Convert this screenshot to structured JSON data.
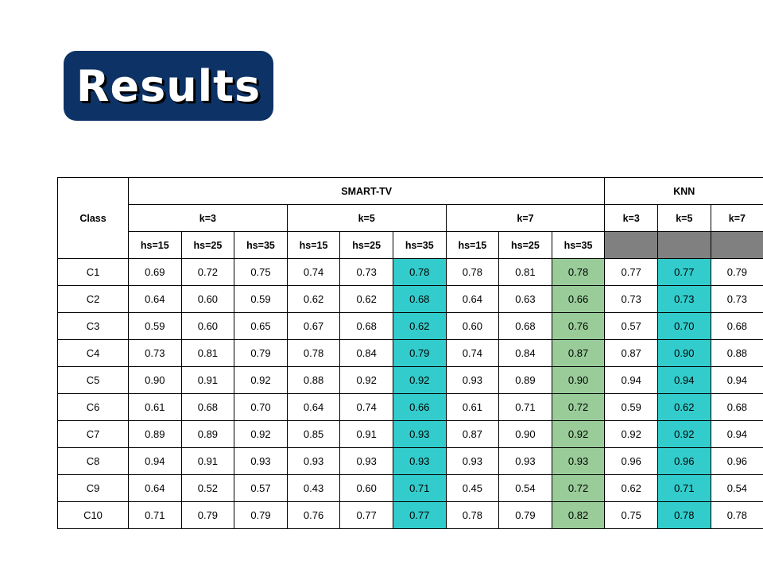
{
  "title": "Results",
  "colors": {
    "badge_bg": "#0d3366",
    "highlight_cyan": "#33cccc",
    "highlight_green": "#99cc99",
    "empty_gray": "#808080"
  },
  "table": {
    "class_header": "Class",
    "groups": [
      "SMART-TV",
      "KNN"
    ],
    "smart_k": [
      "k=3",
      "k=5",
      "k=7"
    ],
    "knn_k": [
      "k=3",
      "k=5",
      "k=7"
    ],
    "hs": [
      "hs=15",
      "hs=25",
      "hs=35",
      "hs=15",
      "hs=25",
      "hs=35",
      "hs=15",
      "hs=25",
      "hs=35"
    ],
    "rows": [
      {
        "cls": "C1",
        "v": [
          "0.69",
          "0.72",
          "0.75",
          "0.74",
          "0.73",
          "0.78",
          "0.78",
          "0.81",
          "0.78",
          "0.77",
          "0.77",
          "0.79"
        ]
      },
      {
        "cls": "C2",
        "v": [
          "0.64",
          "0.60",
          "0.59",
          "0.62",
          "0.62",
          "0.68",
          "0.64",
          "0.63",
          "0.66",
          "0.73",
          "0.73",
          "0.73"
        ]
      },
      {
        "cls": "C3",
        "v": [
          "0.59",
          "0.60",
          "0.65",
          "0.67",
          "0.68",
          "0.62",
          "0.60",
          "0.68",
          "0.76",
          "0.57",
          "0.70",
          "0.68"
        ]
      },
      {
        "cls": "C4",
        "v": [
          "0.73",
          "0.81",
          "0.79",
          "0.78",
          "0.84",
          "0.79",
          "0.74",
          "0.84",
          "0.87",
          "0.87",
          "0.90",
          "0.88"
        ]
      },
      {
        "cls": "C5",
        "v": [
          "0.90",
          "0.91",
          "0.92",
          "0.88",
          "0.92",
          "0.92",
          "0.93",
          "0.89",
          "0.90",
          "0.94",
          "0.94",
          "0.94"
        ]
      },
      {
        "cls": "C6",
        "v": [
          "0.61",
          "0.68",
          "0.70",
          "0.64",
          "0.74",
          "0.66",
          "0.61",
          "0.71",
          "0.72",
          "0.59",
          "0.62",
          "0.68"
        ]
      },
      {
        "cls": "C7",
        "v": [
          "0.89",
          "0.89",
          "0.92",
          "0.85",
          "0.91",
          "0.93",
          "0.87",
          "0.90",
          "0.92",
          "0.92",
          "0.92",
          "0.94"
        ]
      },
      {
        "cls": "C8",
        "v": [
          "0.94",
          "0.91",
          "0.93",
          "0.93",
          "0.93",
          "0.93",
          "0.93",
          "0.93",
          "0.93",
          "0.96",
          "0.96",
          "0.96"
        ]
      },
      {
        "cls": "C9",
        "v": [
          "0.64",
          "0.52",
          "0.57",
          "0.43",
          "0.60",
          "0.71",
          "0.45",
          "0.54",
          "0.72",
          "0.62",
          "0.71",
          "0.54"
        ]
      },
      {
        "cls": "C10",
        "v": [
          "0.71",
          "0.79",
          "0.79",
          "0.76",
          "0.77",
          "0.77",
          "0.78",
          "0.79",
          "0.82",
          "0.75",
          "0.78",
          "0.78"
        ]
      }
    ],
    "bold_cells": [
      [
        0,
        5
      ],
      [
        5,
        5
      ],
      [
        5,
        8
      ],
      [
        6,
        5
      ],
      [
        8,
        5
      ],
      [
        8,
        8
      ],
      [
        9,
        8
      ]
    ]
  }
}
